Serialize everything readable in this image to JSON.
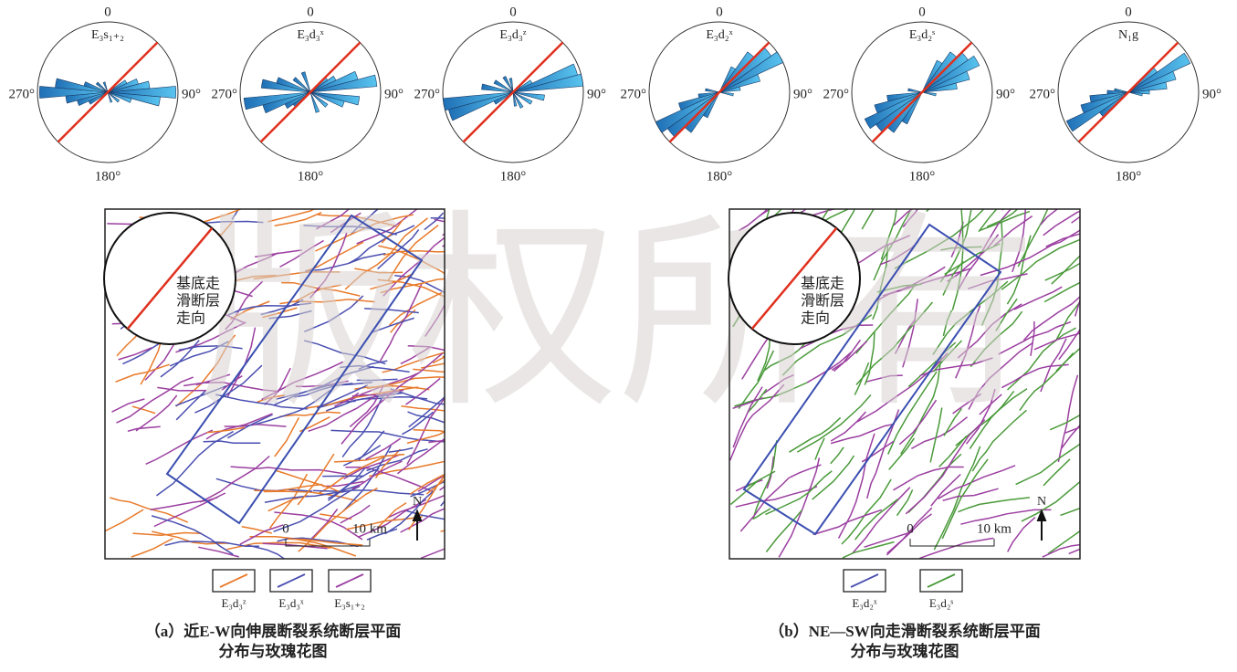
{
  "roses": [
    {
      "label": "E₃s₁₊₂"
    },
    {
      "label": "E₃d₃ˣ"
    },
    {
      "label": "E₃d₃ᶻ"
    },
    {
      "label": "E₃d₂ˣ"
    },
    {
      "label": "E₃d₂ˢ"
    },
    {
      "label": "N₁g"
    }
  ],
  "rose_axis": {
    "north": "0",
    "east": "90°",
    "south": "180°",
    "west": "270°"
  },
  "maps": [
    {
      "inset_text": [
        "基底走",
        "滑断层",
        "走向"
      ],
      "scale_start": "0",
      "scale_end": "10 km",
      "north": "N",
      "legend": [
        "E₃d₃ᶻ",
        "E₃d₃ˣ",
        "E₃s₁₊₂"
      ],
      "caption": [
        "（a）近E-W向伸展断裂系统断层平面",
        "分布与玫瑰花图"
      ]
    },
    {
      "inset_text": [
        "基底走",
        "滑断层",
        "走向"
      ],
      "scale_start": "0",
      "scale_end": "10 km",
      "north": "N",
      "legend": [
        "E₃d₂ˣ",
        "E₃d₂ˢ"
      ],
      "caption": [
        "（b）NE—SW向走滑断裂系统断层平面",
        "分布与玫瑰花图"
      ]
    }
  ],
  "watermark": "版权所有"
}
